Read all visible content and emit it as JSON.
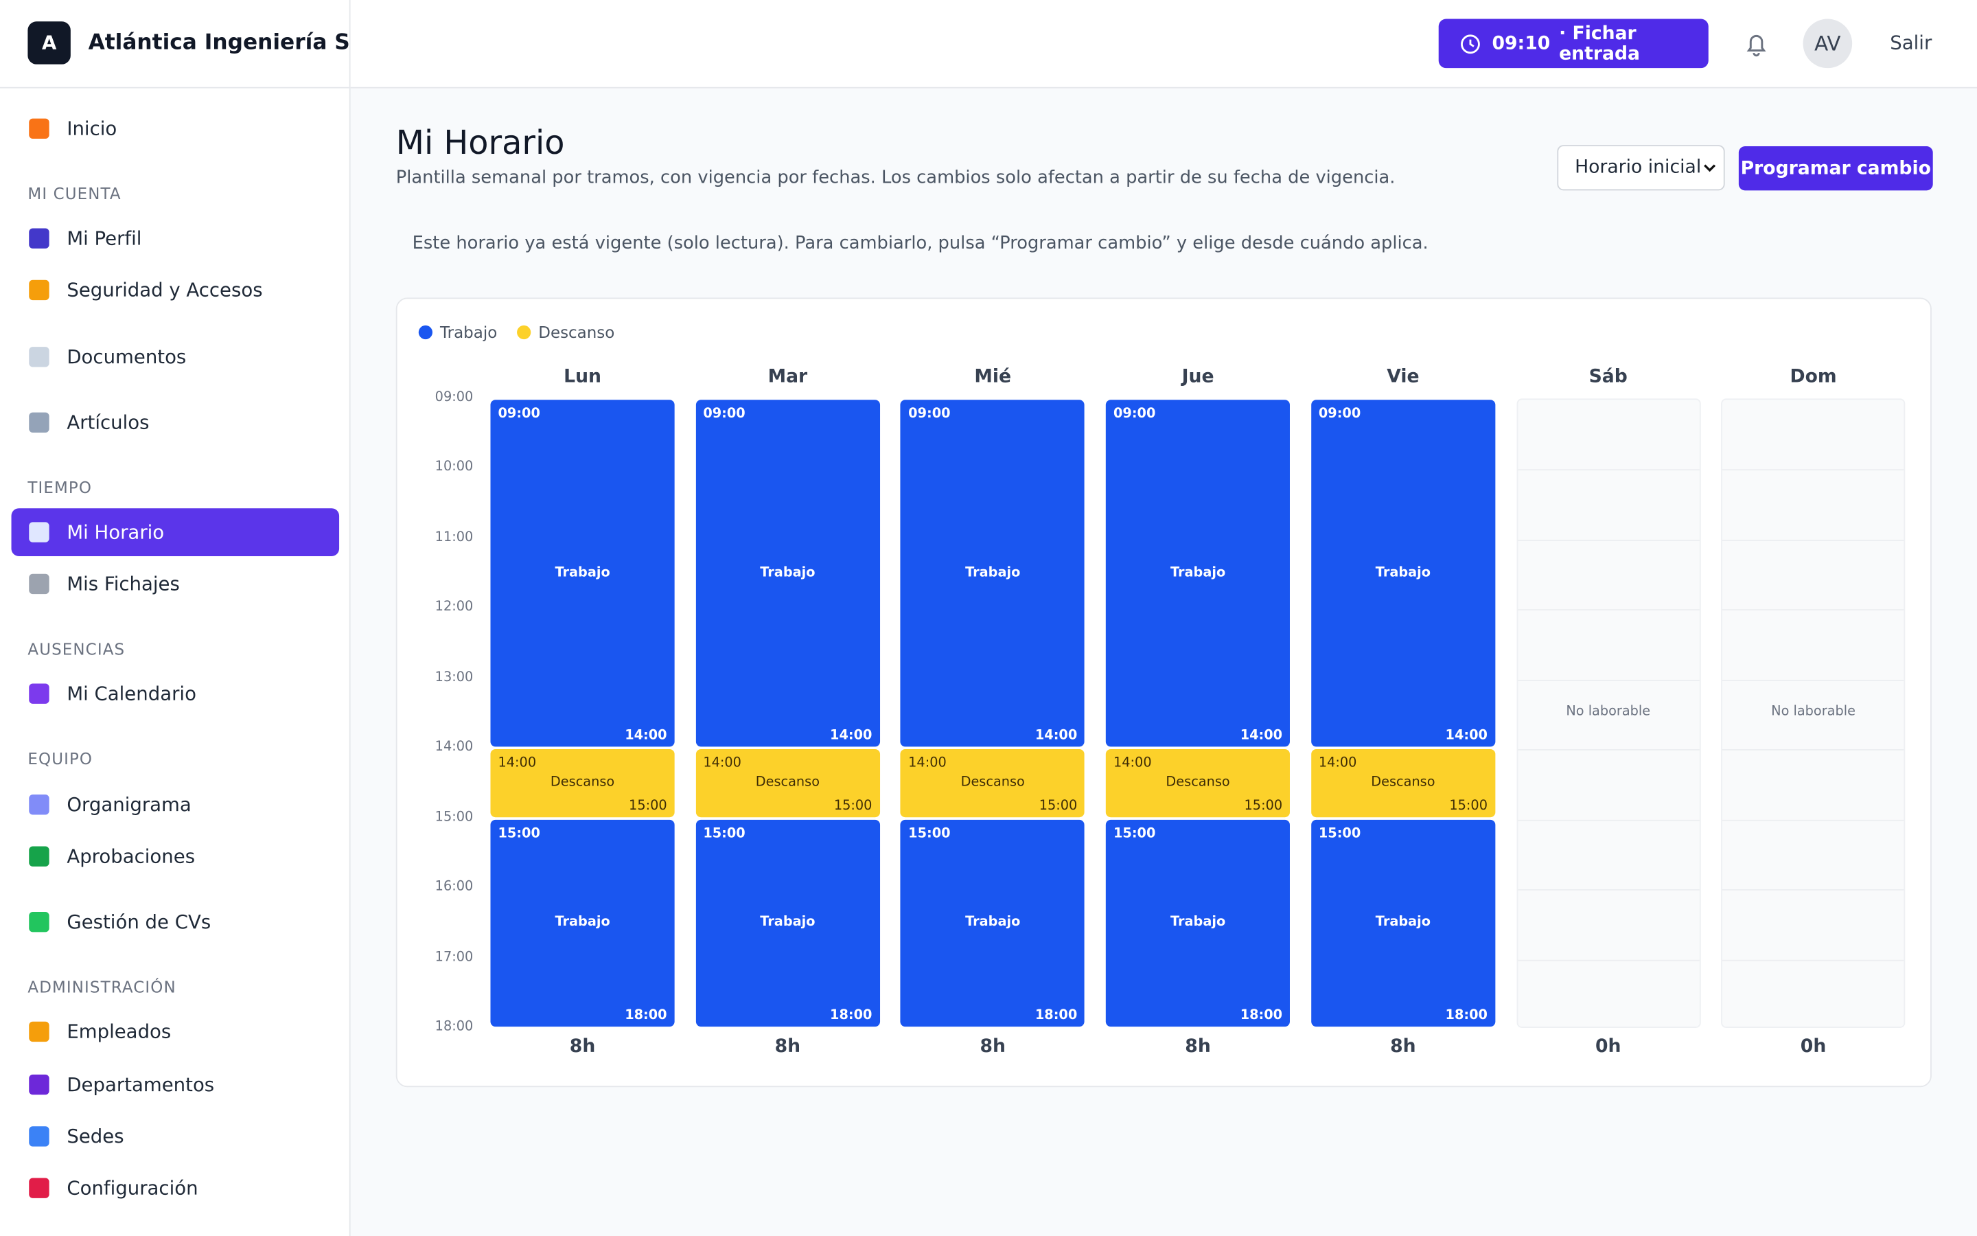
{
  "header": {
    "logo": "A",
    "company": "Atlántica Ingeniería S.L.",
    "clock_time": "09:10",
    "clock_action": "· Fichar entrada",
    "avatar": "AV",
    "logout": "Salir"
  },
  "sidebar": {
    "nav": [
      {
        "label": "Inicio"
      },
      {
        "heading": "MI CUENTA"
      },
      {
        "label": "Mi Perfil"
      },
      {
        "label": "Seguridad y Accesos"
      },
      {
        "label": "Documentos"
      },
      {
        "label": "Artículos"
      },
      {
        "heading": "TIEMPO"
      },
      {
        "label": "Mi Horario",
        "active": true
      },
      {
        "label": "Mis Fichajes"
      },
      {
        "heading": "AUSENCIAS"
      },
      {
        "label": "Mi Calendario"
      },
      {
        "heading": "EQUIPO"
      },
      {
        "label": "Organigrama"
      },
      {
        "label": "Aprobaciones"
      },
      {
        "label": "Gestión de CVs"
      },
      {
        "heading": "ADMINISTRACIÓN"
      },
      {
        "label": "Empleados"
      },
      {
        "label": "Departamentos"
      },
      {
        "label": "Sedes"
      },
      {
        "label": "Configuración"
      }
    ]
  },
  "page": {
    "title": "Mi Horario",
    "subtitle": "Plantilla semanal por tramos, con vigencia por fechas. Los cambios solo afectan a partir de su fecha de vigencia.",
    "select": "Horario inicial",
    "button": "Programar cambio",
    "notice": "Este horario ya está vigente (solo lectura). Para cambiarlo, pulsa “Programar cambio” y elige desde cuándo aplica."
  },
  "schedule": {
    "legend": [
      {
        "name": "Trabajo",
        "color": "#1a56f0"
      },
      {
        "name": "Descanso",
        "color": "#fcd12a"
      }
    ],
    "hours": [
      "09:00",
      "10:00",
      "11:00",
      "12:00",
      "13:00",
      "14:00",
      "15:00",
      "16:00",
      "17:00",
      "18:00"
    ],
    "days": [
      {
        "name": "Lun",
        "blocks": [
          {
            "start": "09:00",
            "end": "14:00",
            "label": "Trabajo"
          },
          {
            "start": "14:00",
            "end": "15:00",
            "label": "Descanso"
          },
          {
            "start": "15:00",
            "end": "18:00",
            "label": "Trabajo"
          }
        ],
        "total": "8h"
      },
      {
        "name": "Mar",
        "blocks": [
          {
            "start": "09:00",
            "end": "14:00",
            "label": "Trabajo"
          },
          {
            "start": "14:00",
            "end": "15:00",
            "label": "Descanso"
          },
          {
            "start": "15:00",
            "end": "18:00",
            "label": "Trabajo"
          }
        ],
        "total": "8h"
      },
      {
        "name": "Mié",
        "blocks": [
          {
            "start": "09:00",
            "end": "14:00",
            "label": "Trabajo"
          },
          {
            "start": "14:00",
            "end": "15:00",
            "label": "Descanso"
          },
          {
            "start": "15:00",
            "end": "18:00",
            "label": "Trabajo"
          }
        ],
        "total": "8h"
      },
      {
        "name": "Jue",
        "blocks": [
          {
            "start": "09:00",
            "end": "14:00",
            "label": "Trabajo"
          },
          {
            "start": "14:00",
            "end": "15:00",
            "label": "Descanso"
          },
          {
            "start": "15:00",
            "end": "18:00",
            "label": "Trabajo"
          }
        ],
        "total": "8h"
      },
      {
        "name": "Vie",
        "blocks": [
          {
            "start": "09:00",
            "end": "14:00",
            "label": "Trabajo"
          },
          {
            "start": "14:00",
            "end": "15:00",
            "label": "Descanso"
          },
          {
            "start": "15:00",
            "end": "18:00",
            "label": "Trabajo"
          }
        ],
        "total": "8h"
      },
      {
        "name": "Sáb",
        "empty": "No laborable",
        "total": "0h"
      },
      {
        "name": "Dom",
        "empty": "No laborable",
        "total": "0h"
      }
    ]
  }
}
